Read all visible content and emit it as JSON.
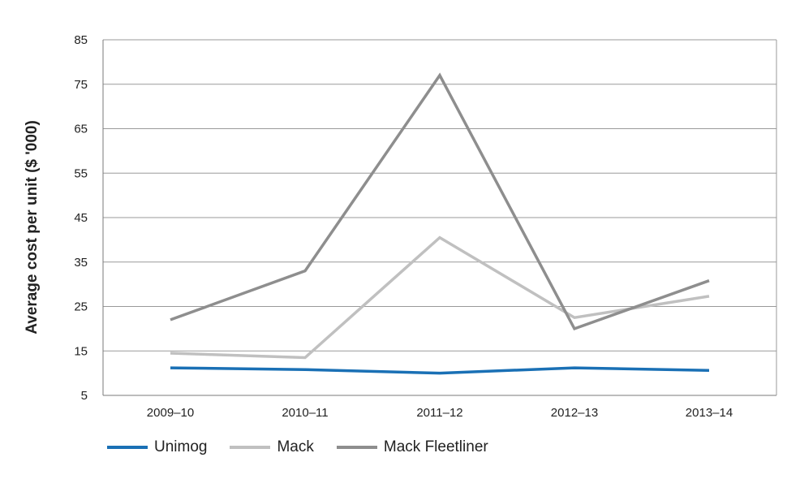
{
  "chart_data": {
    "type": "line",
    "categories": [
      "2009–10",
      "2010–11",
      "2011–12",
      "2012–13",
      "2013–14"
    ],
    "ylabel": "Average cost per unit ($ '000)",
    "ylim": [
      5,
      85
    ],
    "yticks": [
      5,
      15,
      25,
      35,
      45,
      55,
      65,
      75,
      85
    ],
    "grid": true,
    "legend_position": "bottom-left",
    "series": [
      {
        "name": "Unimog",
        "values": [
          11.2,
          10.8,
          10.0,
          11.2,
          10.6
        ],
        "color": "#1a70b5"
      },
      {
        "name": "Mack",
        "values": [
          14.5,
          13.5,
          40.5,
          22.5,
          27.3
        ],
        "color": "#c0c0c0"
      },
      {
        "name": "Mack Fleetliner",
        "values": [
          22.0,
          33.0,
          77.0,
          20.0,
          30.8
        ],
        "color": "#8e8e8e"
      }
    ]
  }
}
